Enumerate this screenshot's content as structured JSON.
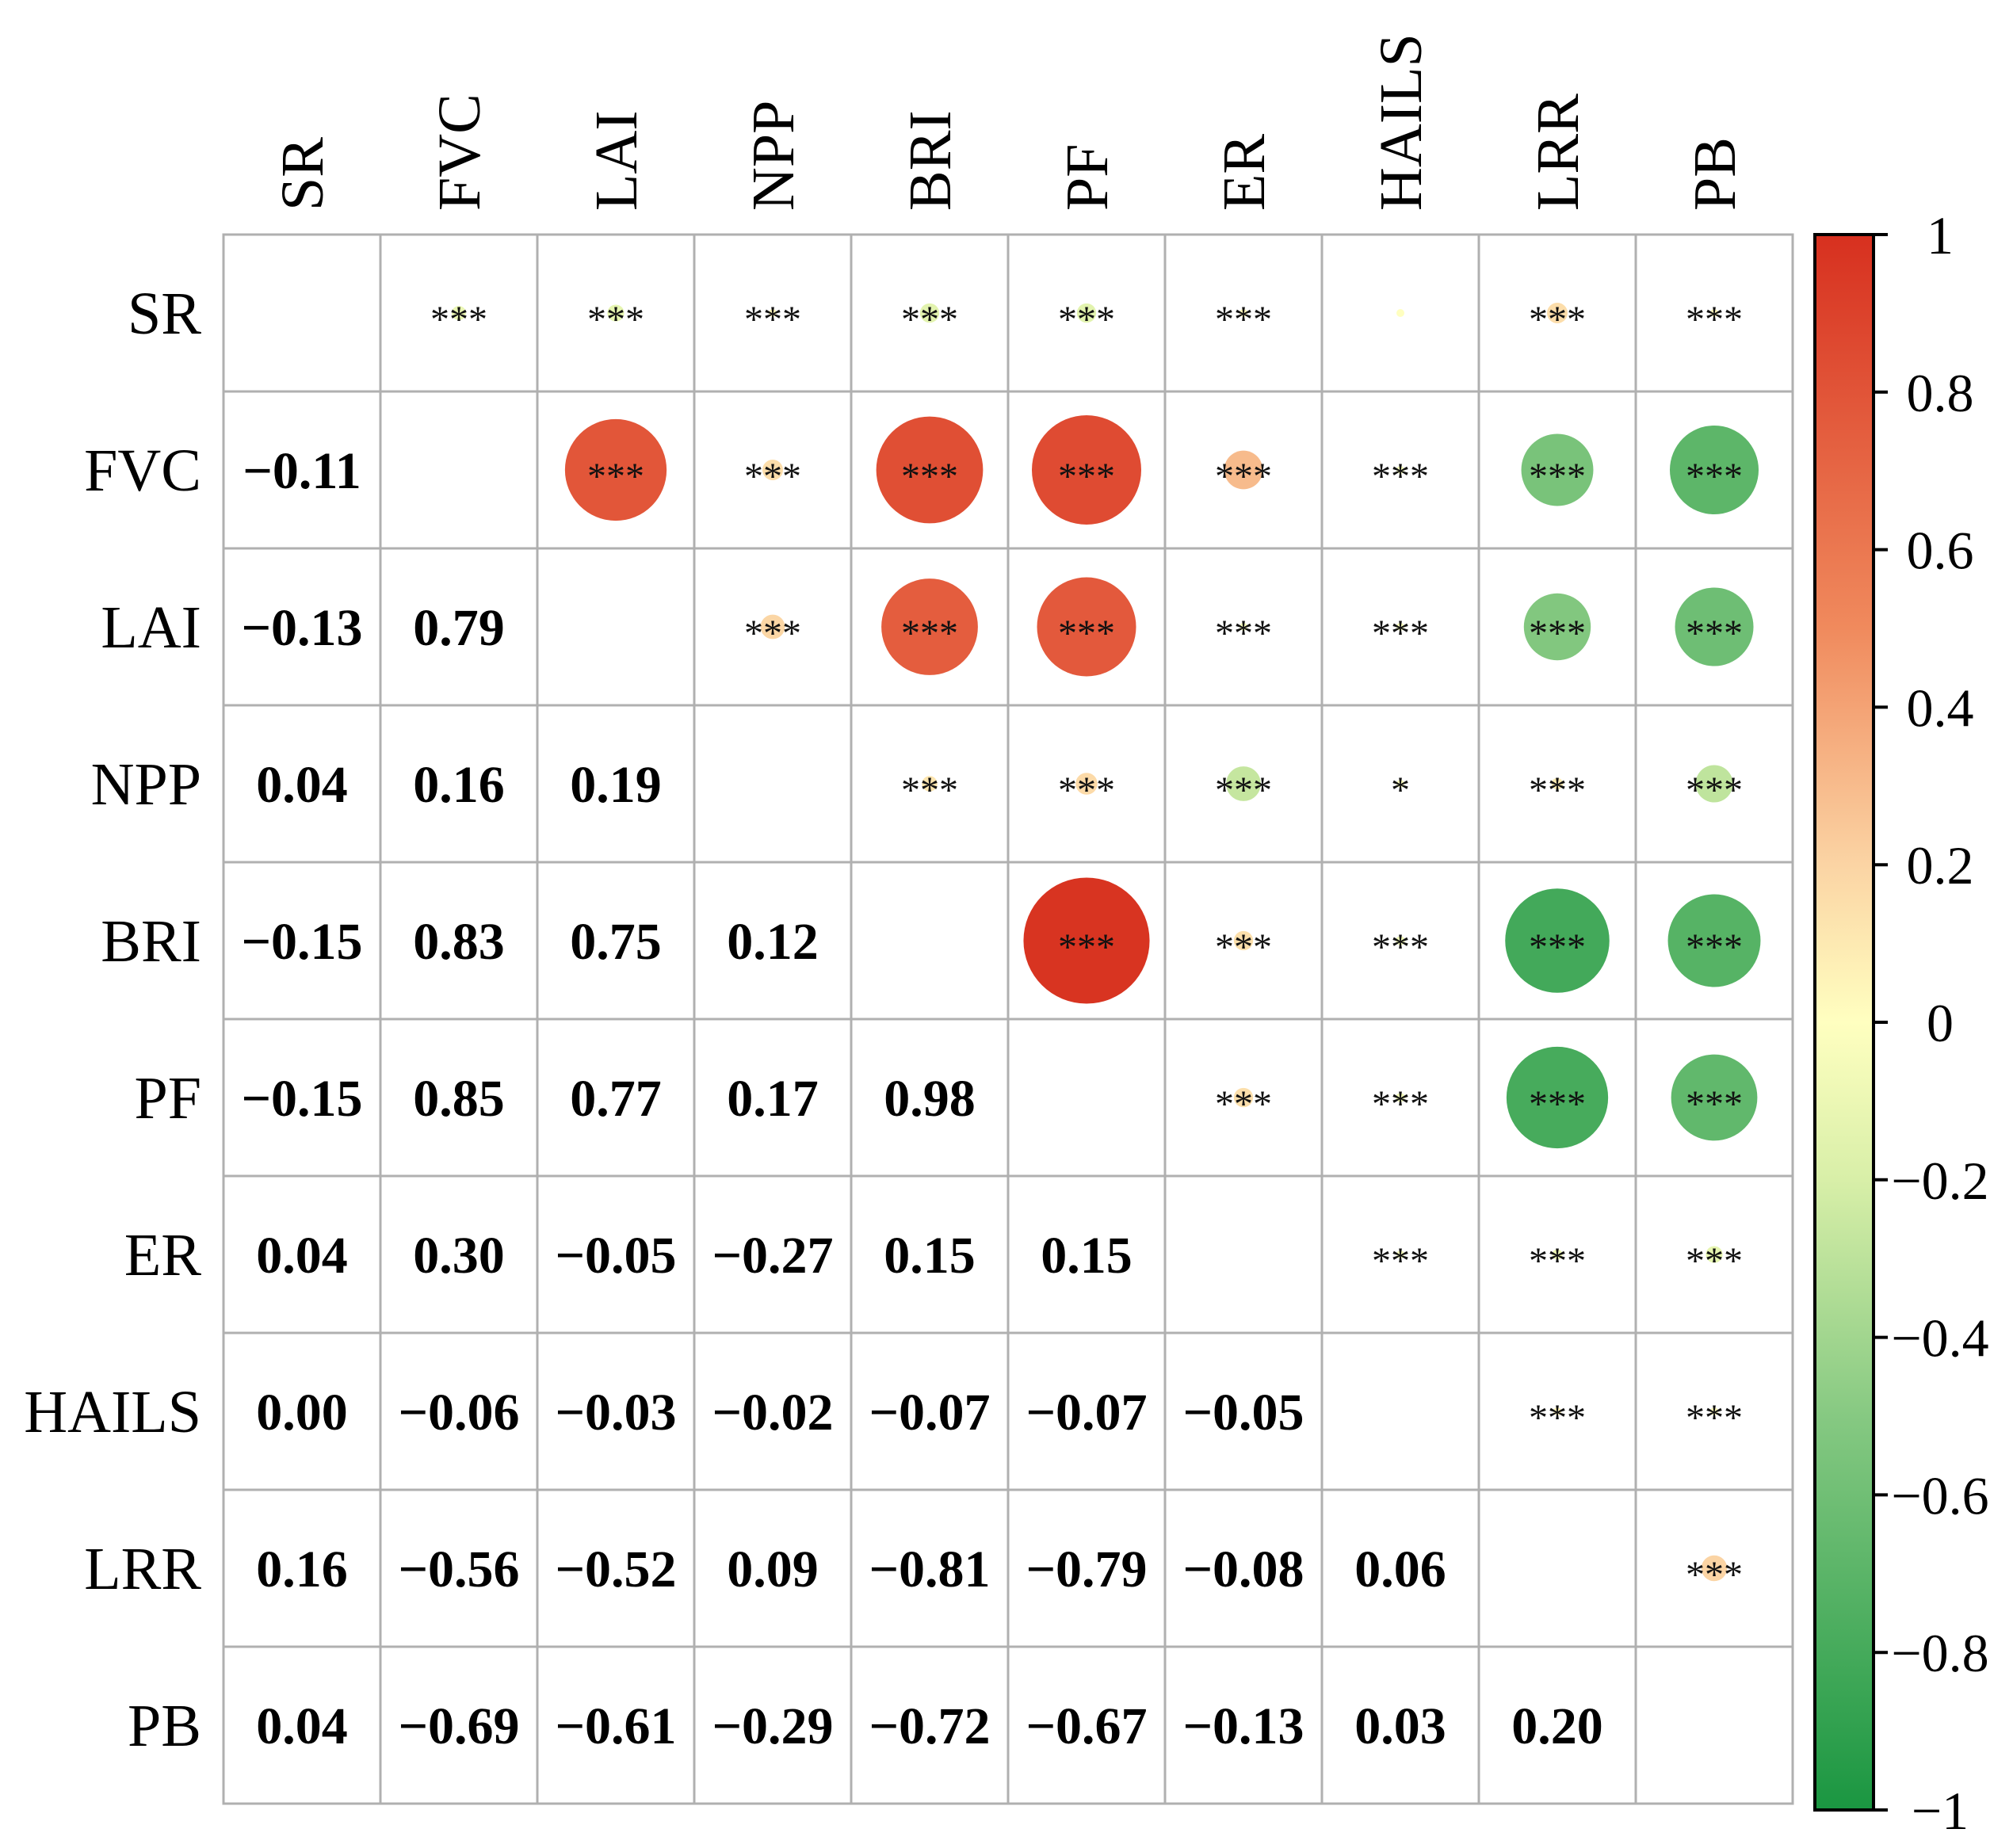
{
  "chart_data": {
    "type": "heatmap",
    "title": "",
    "variables": [
      "SR",
      "FVC",
      "LAI",
      "NPP",
      "BRI",
      "PF",
      "ER",
      "HAILS",
      "LRR",
      "PB"
    ],
    "matrix": [
      [
        null,
        -0.11,
        -0.13,
        0.04,
        -0.15,
        -0.15,
        0.04,
        0.0,
        0.16,
        0.04
      ],
      [
        -0.11,
        null,
        0.79,
        0.16,
        0.83,
        0.85,
        0.3,
        -0.06,
        -0.56,
        -0.69
      ],
      [
        -0.13,
        0.79,
        null,
        0.19,
        0.75,
        0.77,
        -0.05,
        -0.03,
        -0.52,
        -0.61
      ],
      [
        0.04,
        0.16,
        0.19,
        null,
        0.12,
        0.17,
        -0.27,
        -0.02,
        0.09,
        -0.29
      ],
      [
        -0.15,
        0.83,
        0.75,
        0.12,
        null,
        0.98,
        0.15,
        -0.07,
        -0.81,
        -0.72
      ],
      [
        -0.15,
        0.85,
        0.77,
        0.17,
        0.98,
        null,
        0.15,
        -0.07,
        -0.79,
        -0.67
      ],
      [
        0.04,
        0.3,
        -0.05,
        -0.27,
        0.15,
        0.15,
        null,
        -0.05,
        -0.08,
        -0.13
      ],
      [
        0.0,
        -0.06,
        -0.03,
        -0.02,
        -0.07,
        -0.07,
        -0.05,
        null,
        0.06,
        0.03
      ],
      [
        0.16,
        -0.56,
        -0.52,
        0.09,
        -0.81,
        -0.79,
        -0.08,
        0.06,
        null,
        0.2
      ],
      [
        0.04,
        -0.69,
        -0.61,
        -0.29,
        -0.72,
        -0.67,
        -0.13,
        0.03,
        0.2,
        null
      ]
    ],
    "lower_labels": [
      [
        null,
        null,
        null,
        null,
        null,
        null,
        null,
        null,
        null,
        null
      ],
      [
        "−0.11",
        null,
        null,
        null,
        null,
        null,
        null,
        null,
        null,
        null
      ],
      [
        "−0.13",
        "0.79",
        null,
        null,
        null,
        null,
        null,
        null,
        null,
        null
      ],
      [
        "0.04",
        "0.16",
        "0.19",
        null,
        null,
        null,
        null,
        null,
        null,
        null
      ],
      [
        "−0.15",
        "0.83",
        "0.75",
        "0.12",
        null,
        null,
        null,
        null,
        null,
        null
      ],
      [
        "−0.15",
        "0.85",
        "0.77",
        "0.17",
        "0.98",
        null,
        null,
        null,
        null,
        null
      ],
      [
        "0.04",
        "0.30",
        "−0.05",
        "−0.27",
        "0.15",
        "0.15",
        null,
        null,
        null,
        null
      ],
      [
        "0.00",
        "−0.06",
        "−0.03",
        "−0.02",
        "−0.07",
        "−0.07",
        "−0.05",
        null,
        null,
        null
      ],
      [
        "0.16",
        "−0.56",
        "−0.52",
        "0.09",
        "−0.81",
        "−0.79",
        "−0.08",
        "0.06",
        null,
        null
      ],
      [
        "0.04",
        "−0.69",
        "−0.61",
        "−0.29",
        "−0.72",
        "−0.67",
        "−0.13",
        "0.03",
        "0.20",
        null
      ]
    ],
    "significance": [
      [
        null,
        "***",
        "***",
        "***",
        "***",
        "***",
        "***",
        "",
        "***",
        "***"
      ],
      [
        null,
        null,
        "***",
        "***",
        "***",
        "***",
        "***",
        "***",
        "***",
        "***"
      ],
      [
        null,
        null,
        null,
        "***",
        "***",
        "***",
        "***",
        "***",
        "***",
        "***"
      ],
      [
        null,
        null,
        null,
        null,
        "***",
        "***",
        "***",
        "*",
        "***",
        "***"
      ],
      [
        null,
        null,
        null,
        null,
        null,
        "***",
        "***",
        "***",
        "***",
        "***"
      ],
      [
        null,
        null,
        null,
        null,
        null,
        null,
        "***",
        "***",
        "***",
        "***"
      ],
      [
        null,
        null,
        null,
        null,
        null,
        null,
        null,
        "***",
        "***",
        "***"
      ],
      [
        null,
        null,
        null,
        null,
        null,
        null,
        null,
        null,
        "***",
        "***"
      ],
      [
        null,
        null,
        null,
        null,
        null,
        null,
        null,
        null,
        null,
        "***"
      ],
      [
        null,
        null,
        null,
        null,
        null,
        null,
        null,
        null,
        null,
        null
      ]
    ],
    "colorbar": {
      "range": [
        -1,
        1
      ],
      "ticks": [
        1,
        0.8,
        0.6,
        0.4,
        0.2,
        0,
        -0.2,
        -0.4,
        -0.6,
        -0.8,
        -1
      ],
      "tick_labels": [
        "1",
        "0.8",
        "0.6",
        "0.4",
        "0.2",
        "0",
        "−0.2",
        "−0.4",
        "−0.6",
        "−0.8",
        "−1"
      ],
      "colors": {
        "pos": "#d7301f",
        "mid": "#ffffc0",
        "neg": "#1a9641"
      }
    },
    "grid_color": "#b0b0b0"
  }
}
